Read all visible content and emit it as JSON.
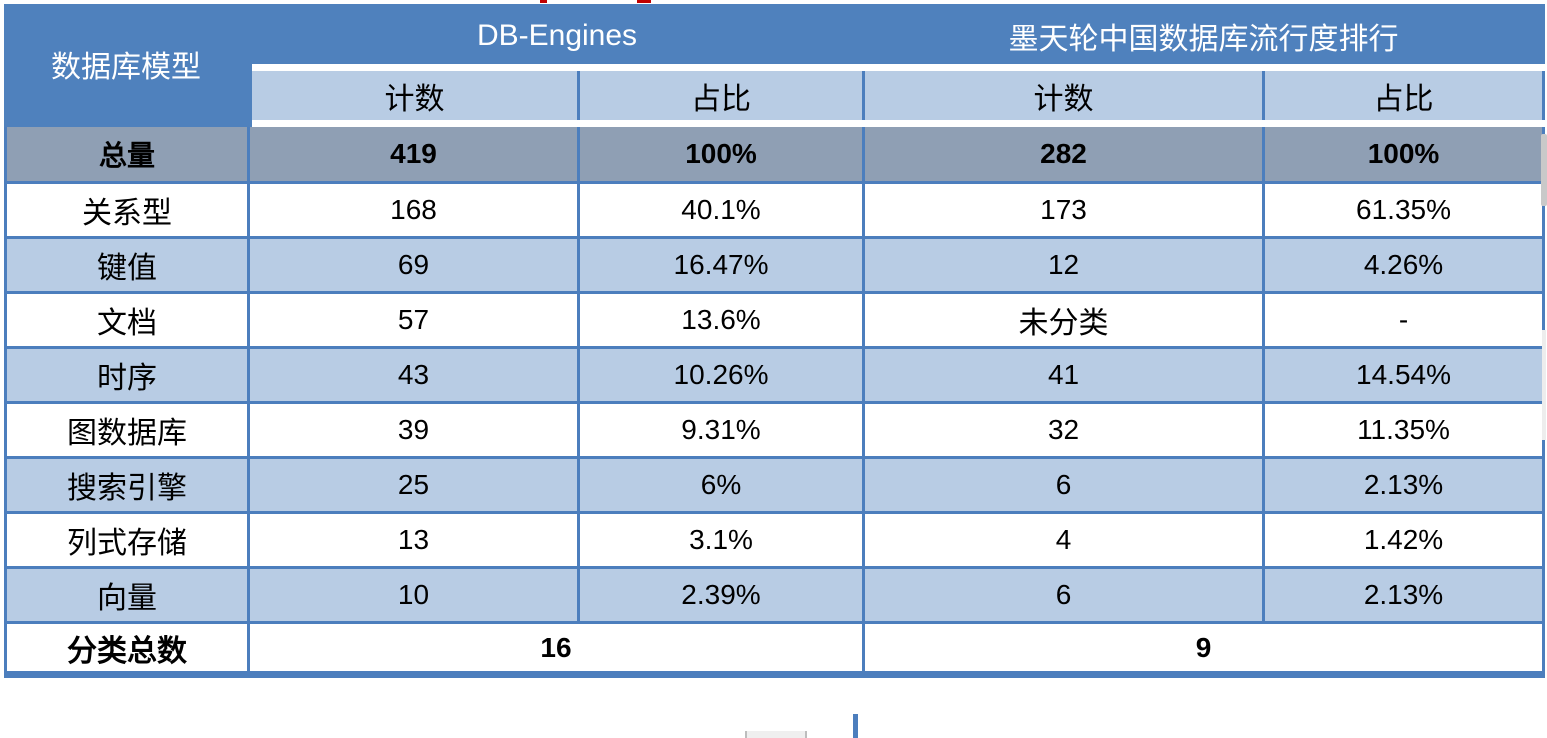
{
  "colors": {
    "header_blue": "#4F81BD",
    "light_blue": "#B8CCE4",
    "total_gray": "#8F9FB4",
    "border_blue": "#4C7EBD",
    "artifact_red": "#C00000"
  },
  "table": {
    "corner_header": "数据库模型",
    "groups": [
      {
        "label": "DB-Engines"
      },
      {
        "label": "墨天轮中国数据库流行度排行"
      }
    ],
    "sub_headers": {
      "count_1": "计数",
      "share_1": "占比",
      "count_2": "计数",
      "share_2": "占比"
    },
    "total_row": {
      "label": "总量",
      "values": [
        "419",
        "100%",
        "282",
        "100%"
      ]
    },
    "rows": [
      {
        "label": "关系型",
        "values": [
          "168",
          "40.1%",
          "173",
          "61.35%"
        ]
      },
      {
        "label": "键值",
        "values": [
          "69",
          "16.47%",
          "12",
          "4.26%"
        ]
      },
      {
        "label": "文档",
        "values": [
          "57",
          "13.6%",
          "未分类",
          "-"
        ]
      },
      {
        "label": "时序",
        "values": [
          "43",
          "10.26%",
          "41",
          "14.54%"
        ]
      },
      {
        "label": "图数据库",
        "values": [
          "39",
          "9.31%",
          "32",
          "11.35%"
        ]
      },
      {
        "label": "搜索引擎",
        "values": [
          "25",
          "6%",
          "6",
          "2.13%"
        ]
      },
      {
        "label": "列式存储",
        "values": [
          "13",
          "3.1%",
          "4",
          "1.42%"
        ]
      },
      {
        "label": "向量",
        "values": [
          "10",
          "2.39%",
          "6",
          "2.13%"
        ]
      }
    ],
    "footer_row": {
      "label": "分类总数",
      "db_engines_total": "16",
      "modb_total": "9"
    }
  },
  "chart_data": {
    "type": "table",
    "title": "",
    "column_groups": [
      "数据库模型",
      "DB-Engines",
      "墨天轮中国数据库流行度排行"
    ],
    "columns": [
      "数据库模型",
      "DB-Engines 计数",
      "DB-Engines 占比",
      "墨天轮 计数",
      "墨天轮 占比"
    ],
    "rows": [
      [
        "总量",
        "419",
        "100%",
        "282",
        "100%"
      ],
      [
        "关系型",
        "168",
        "40.1%",
        "173",
        "61.35%"
      ],
      [
        "键值",
        "69",
        "16.47%",
        "12",
        "4.26%"
      ],
      [
        "文档",
        "57",
        "13.6%",
        "未分类",
        "-"
      ],
      [
        "时序",
        "43",
        "10.26%",
        "41",
        "14.54%"
      ],
      [
        "图数据库",
        "39",
        "9.31%",
        "32",
        "11.35%"
      ],
      [
        "搜索引擎",
        "25",
        "6%",
        "6",
        "2.13%"
      ],
      [
        "列式存储",
        "13",
        "3.1%",
        "4",
        "1.42%"
      ],
      [
        "向量",
        "10",
        "2.39%",
        "6",
        "2.13%"
      ],
      [
        "分类总数",
        "16",
        "",
        "9",
        ""
      ]
    ]
  }
}
